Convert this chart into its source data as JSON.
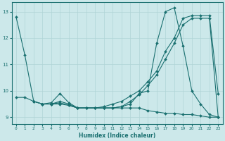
{
  "xlabel": "Humidex (Indice chaleur)",
  "background_color": "#cce8ea",
  "grid_color": "#b0d4d6",
  "line_color": "#1a7070",
  "xlim": [
    -0.5,
    23.5
  ],
  "ylim": [
    8.75,
    13.35
  ],
  "yticks": [
    9,
    10,
    11,
    12,
    13
  ],
  "xticks": [
    0,
    1,
    2,
    3,
    4,
    5,
    6,
    7,
    8,
    9,
    10,
    11,
    12,
    13,
    14,
    15,
    16,
    17,
    18,
    19,
    20,
    21,
    22,
    23
  ],
  "series": [
    {
      "x": [
        0,
        1,
        2,
        3,
        4,
        5,
        6,
        7,
        8,
        9,
        10,
        11,
        12,
        13,
        14,
        15,
        16,
        17,
        18,
        19,
        20,
        21,
        22,
        23
      ],
      "y": [
        12.8,
        11.35,
        9.6,
        9.5,
        9.55,
        9.9,
        9.55,
        9.35,
        9.35,
        9.35,
        9.35,
        9.35,
        9.4,
        9.5,
        9.9,
        10.0,
        11.8,
        13.0,
        13.15,
        11.7,
        10.0,
        9.5,
        9.1,
        9.0
      ]
    },
    {
      "x": [
        2,
        3,
        4,
        5,
        6,
        7,
        8,
        9,
        10,
        11,
        12,
        13,
        14,
        15,
        16,
        17,
        18,
        19,
        20,
        21,
        22,
        23
      ],
      "y": [
        9.6,
        9.5,
        9.5,
        9.55,
        9.45,
        9.35,
        9.35,
        9.35,
        9.35,
        9.35,
        9.35,
        9.35,
        9.35,
        9.25,
        9.2,
        9.15,
        9.15,
        9.1,
        9.1,
        9.05,
        9.0,
        9.0
      ]
    },
    {
      "x": [
        0,
        1,
        2,
        3,
        4,
        5,
        6,
        7,
        8,
        9,
        10,
        11,
        12,
        13,
        14,
        15,
        16,
        17,
        18,
        19,
        20,
        21,
        22,
        23
      ],
      "y": [
        9.75,
        9.75,
        9.6,
        9.5,
        9.5,
        9.5,
        9.45,
        9.35,
        9.35,
        9.35,
        9.4,
        9.5,
        9.6,
        9.8,
        10.0,
        10.35,
        10.75,
        11.5,
        12.0,
        12.75,
        12.85,
        12.85,
        12.85,
        9.9
      ]
    },
    {
      "x": [
        3,
        4,
        5,
        6,
        7,
        8,
        9,
        10,
        11,
        12,
        13,
        14,
        15,
        16,
        17,
        18,
        19,
        20,
        21,
        22,
        23
      ],
      "y": [
        9.5,
        9.5,
        9.6,
        9.5,
        9.35,
        9.35,
        9.35,
        9.35,
        9.35,
        9.4,
        9.6,
        9.85,
        10.2,
        10.6,
        11.2,
        11.8,
        12.5,
        12.75,
        12.75,
        12.75,
        9.0
      ]
    }
  ]
}
